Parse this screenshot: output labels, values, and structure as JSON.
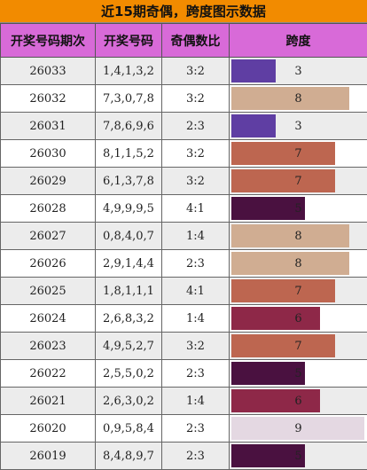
{
  "title": "近15期奇偶，跨度图示数据",
  "headers": {
    "issue": "开奖号码期次",
    "numbers": "开奖号码",
    "parity": "奇偶数比",
    "span": "跨度"
  },
  "max_span": 9,
  "span_colors": {
    "3": "#5f3ea3",
    "5": "#4a1140",
    "6": "#8e2848",
    "7": "#bd6650",
    "8": "#d0ad92",
    "9": "#e4d8e2"
  },
  "rows": [
    {
      "issue": "26033",
      "numbers": "1,4,1,3,2",
      "parity": "3:2",
      "span": 3
    },
    {
      "issue": "26032",
      "numbers": "7,3,0,7,8",
      "parity": "3:2",
      "span": 8
    },
    {
      "issue": "26031",
      "numbers": "7,8,6,9,6",
      "parity": "2:3",
      "span": 3
    },
    {
      "issue": "26030",
      "numbers": "8,1,1,5,2",
      "parity": "3:2",
      "span": 7
    },
    {
      "issue": "26029",
      "numbers": "6,1,3,7,8",
      "parity": "3:2",
      "span": 7
    },
    {
      "issue": "26028",
      "numbers": "4,9,9,9,5",
      "parity": "4:1",
      "span": 5
    },
    {
      "issue": "26027",
      "numbers": "0,8,4,0,7",
      "parity": "1:4",
      "span": 8
    },
    {
      "issue": "26026",
      "numbers": "2,9,1,4,4",
      "parity": "2:3",
      "span": 8
    },
    {
      "issue": "26025",
      "numbers": "1,8,1,1,1",
      "parity": "4:1",
      "span": 7
    },
    {
      "issue": "26024",
      "numbers": "2,6,8,3,2",
      "parity": "1:4",
      "span": 6
    },
    {
      "issue": "26023",
      "numbers": "4,9,5,2,7",
      "parity": "3:2",
      "span": 7
    },
    {
      "issue": "26022",
      "numbers": "2,5,5,0,2",
      "parity": "2:3",
      "span": 5
    },
    {
      "issue": "26021",
      "numbers": "2,6,3,0,2",
      "parity": "1:4",
      "span": 6
    },
    {
      "issue": "26020",
      "numbers": "0,9,5,8,4",
      "parity": "2:3",
      "span": 9
    },
    {
      "issue": "26019",
      "numbers": "8,4,8,9,7",
      "parity": "2:3",
      "span": 5
    }
  ]
}
